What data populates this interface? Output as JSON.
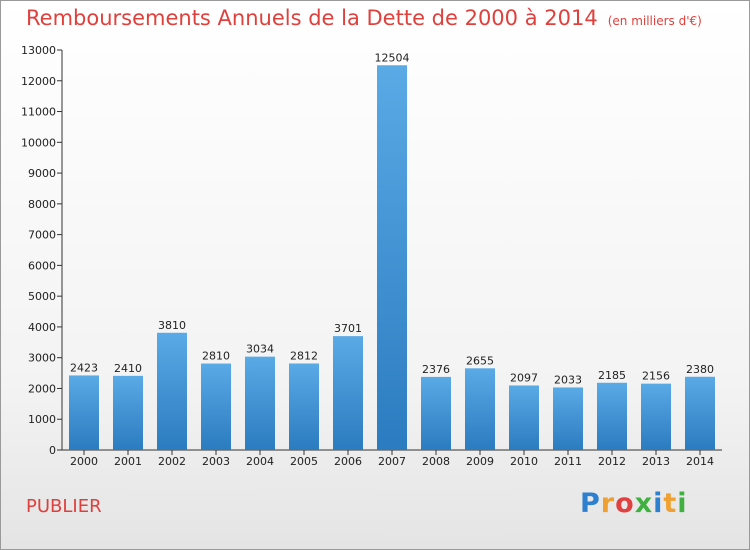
{
  "title": "Remboursements Annuels de la Dette de 2000 à 2014",
  "unit_note": "(en milliers d'€)",
  "commune": "PUBLIER",
  "logo": {
    "letters": [
      "P",
      "r",
      "o",
      "x",
      "i",
      "t",
      "i"
    ],
    "colors": [
      "#2d7fd0",
      "#f0a030",
      "#e04040",
      "#40b040",
      "#2d7fd0",
      "#f0a030",
      "#40b040"
    ]
  },
  "colors": {
    "bar_top": "#5aaae6",
    "bar_bottom": "#2b7bc0",
    "title": "#e0403c",
    "axis": "#333333"
  },
  "chart_data": {
    "type": "bar",
    "categories": [
      "2000",
      "2001",
      "2002",
      "2003",
      "2004",
      "2005",
      "2006",
      "2007",
      "2008",
      "2009",
      "2010",
      "2011",
      "2012",
      "2013",
      "2014"
    ],
    "values": [
      2423,
      2410,
      3810,
      2810,
      3034,
      2812,
      3701,
      12504,
      2376,
      2655,
      2097,
      2033,
      2185,
      2156,
      2380
    ],
    "ylim": [
      0,
      13000
    ],
    "yticks": [
      0,
      1000,
      2000,
      3000,
      4000,
      5000,
      6000,
      7000,
      8000,
      9000,
      10000,
      11000,
      12000,
      13000
    ],
    "title": "Remboursements Annuels de la Dette de 2000 à 2014",
    "xlabel": "",
    "ylabel": "",
    "grid": false
  }
}
